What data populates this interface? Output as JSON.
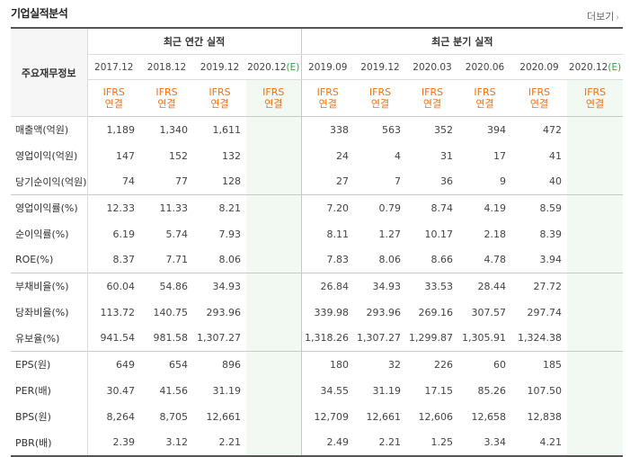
{
  "header": {
    "title": "기업실적분석",
    "more_label": "더보기",
    "more_arrow": "›"
  },
  "table": {
    "label_header": "주요재무정보",
    "group_annual": "최근 연간 실적",
    "group_quarter": "최근 분기 실적",
    "periods": [
      "2017.12",
      "2018.12",
      "2019.12",
      "2020.12(E)",
      "2019.09",
      "2019.12",
      "2020.03",
      "2020.06",
      "2020.09",
      "2020.12(E)"
    ],
    "standard_line1": "IFRS",
    "standard_line2": "연결",
    "rows": [
      {
        "label": "매출액(억원)",
        "values": [
          "1,189",
          "1,340",
          "1,611",
          "",
          "338",
          "563",
          "352",
          "394",
          "472",
          ""
        ]
      },
      {
        "label": "영업이익(억원)",
        "values": [
          "147",
          "152",
          "132",
          "",
          "24",
          "4",
          "31",
          "17",
          "41",
          ""
        ]
      },
      {
        "label": "당기순이익(억원)",
        "values": [
          "74",
          "77",
          "128",
          "",
          "27",
          "7",
          "36",
          "9",
          "40",
          ""
        ]
      },
      {
        "label": "영업이익률(%)",
        "values": [
          "12.33",
          "11.33",
          "8.21",
          "",
          "7.20",
          "0.79",
          "8.74",
          "4.19",
          "8.59",
          ""
        ]
      },
      {
        "label": "순이익률(%)",
        "values": [
          "6.19",
          "5.74",
          "7.93",
          "",
          "8.11",
          "1.27",
          "10.17",
          "2.18",
          "8.39",
          ""
        ]
      },
      {
        "label": "ROE(%)",
        "values": [
          "8.37",
          "7.71",
          "8.06",
          "",
          "7.83",
          "8.06",
          "8.66",
          "4.78",
          "3.94",
          ""
        ]
      },
      {
        "label": "부채비율(%)",
        "values": [
          "60.04",
          "54.86",
          "34.93",
          "",
          "26.84",
          "34.93",
          "33.53",
          "28.44",
          "27.72",
          ""
        ]
      },
      {
        "label": "당좌비율(%)",
        "values": [
          "113.72",
          "140.75",
          "293.96",
          "",
          "339.98",
          "293.96",
          "269.16",
          "307.57",
          "297.74",
          ""
        ]
      },
      {
        "label": "유보율(%)",
        "values": [
          "941.54",
          "981.58",
          "1,307.27",
          "",
          "1,318.26",
          "1,307.27",
          "1,299.87",
          "1,305.91",
          "1,324.38",
          ""
        ]
      },
      {
        "label": "EPS(원)",
        "values": [
          "649",
          "654",
          "896",
          "",
          "180",
          "32",
          "226",
          "60",
          "185",
          ""
        ]
      },
      {
        "label": "PER(배)",
        "values": [
          "30.47",
          "41.56",
          "31.19",
          "",
          "34.55",
          "31.19",
          "17.15",
          "85.26",
          "107.50",
          ""
        ]
      },
      {
        "label": "BPS(원)",
        "values": [
          "8,264",
          "8,705",
          "12,661",
          "",
          "12,709",
          "12,661",
          "12,606",
          "12,658",
          "12,838",
          ""
        ]
      },
      {
        "label": "PBR(배)",
        "values": [
          "2.39",
          "3.12",
          "2.21",
          "",
          "2.49",
          "2.21",
          "1.25",
          "3.34",
          "4.21",
          ""
        ]
      }
    ]
  }
}
